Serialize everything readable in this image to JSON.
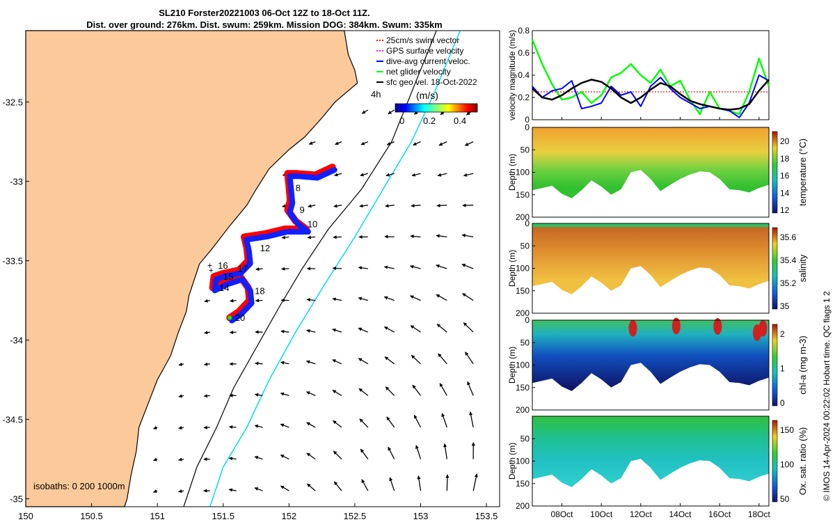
{
  "title": {
    "line1": "SL210 Forster20221003 06-Oct 12Z to 18-Oct 11Z.",
    "line2": "Dist. over ground: 276km. Dist. swum: 259km. Mission DOG: 384km. Swum: 335km"
  },
  "map": {
    "xticks": [
      "150",
      "150.5",
      "151",
      "151.5",
      "152",
      "152.5",
      "153",
      "153.5"
    ],
    "xtick_values": [
      150,
      150.5,
      151,
      151.5,
      152,
      152.5,
      153,
      153.5
    ],
    "yticks": [
      "-32.5",
      "-33",
      "-33.5",
      "-34",
      "-34.5",
      "-35"
    ],
    "ytick_values": [
      -32.5,
      -33,
      -33.5,
      -34,
      -34.5,
      -35
    ],
    "xlim": [
      150,
      153.6
    ],
    "ylim": [
      -35.05,
      -32.05
    ],
    "time_label": "4h",
    "isobaths_label": "isobaths: 0   200  1000m",
    "colorbar_title": "(m/s)",
    "colorbar_ticks": [
      "0",
      "0.2",
      "0.4"
    ],
    "legend": [
      {
        "label": "25cm/s swim vector",
        "color": "#ff0000",
        "style": "dotted"
      },
      {
        "label": "GPS surface velocity",
        "color": "#ff00ff",
        "style": "dotted"
      },
      {
        "label": "dive-avg current veloc.",
        "color": "#0000ff",
        "style": "solid"
      },
      {
        "label": "net glider velocity",
        "color": "#00ff00",
        "style": "solid"
      },
      {
        "label": "sfc geo vel. 18-Oct-2022",
        "color": "#000000",
        "style": "solid"
      }
    ],
    "track_day_labels": [
      {
        "day": "8",
        "lon": 152.05,
        "lat": -33.06
      },
      {
        "day": "9",
        "lon": 152.08,
        "lat": -33.2
      },
      {
        "day": "10",
        "lon": 152.14,
        "lat": -33.29
      },
      {
        "day": "12",
        "lon": 151.78,
        "lat": -33.44
      },
      {
        "day": "16",
        "lon": 151.46,
        "lat": -33.55
      },
      {
        "day": "17",
        "lon": 151.61,
        "lat": -33.57
      },
      {
        "day": "15",
        "lon": 151.5,
        "lat": -33.62
      },
      {
        "day": "14",
        "lon": 151.47,
        "lat": -33.69
      },
      {
        "day": "18",
        "lon": 151.74,
        "lat": -33.71
      },
      {
        "day": "20",
        "lon": 151.59,
        "lat": -33.88
      }
    ],
    "track": [
      [
        152.33,
        -32.91
      ],
      [
        152.2,
        -32.96
      ],
      [
        152.05,
        -32.95
      ],
      [
        151.99,
        -32.95
      ],
      [
        152.0,
        -33.03
      ],
      [
        152.01,
        -33.12
      ],
      [
        151.99,
        -33.18
      ],
      [
        152.05,
        -33.25
      ],
      [
        152.13,
        -33.3
      ],
      [
        151.97,
        -33.3
      ],
      [
        151.82,
        -33.33
      ],
      [
        151.66,
        -33.35
      ],
      [
        151.68,
        -33.42
      ],
      [
        151.69,
        -33.5
      ],
      [
        151.62,
        -33.56
      ],
      [
        151.5,
        -33.58
      ],
      [
        151.43,
        -33.6
      ],
      [
        151.42,
        -33.67
      ],
      [
        151.52,
        -33.63
      ],
      [
        151.63,
        -33.6
      ],
      [
        151.69,
        -33.67
      ],
      [
        151.7,
        -33.75
      ],
      [
        151.62,
        -33.82
      ],
      [
        151.55,
        -33.86
      ]
    ]
  },
  "right_panels": {
    "velocity": {
      "ylabel": "velocity magnitude (m/s)",
      "yticks": [
        "0",
        "0.2",
        "0.4",
        "0.6",
        "0.8"
      ],
      "ylim": [
        0,
        0.8
      ],
      "xlim_days": [
        6.5,
        18.5
      ],
      "swim_speed": 0.25,
      "series_days": [
        6.5,
        7,
        7.5,
        8,
        8.5,
        9,
        9.5,
        10,
        10.5,
        11,
        11.5,
        12,
        12.5,
        13,
        13.5,
        14,
        14.5,
        15,
        15.5,
        16,
        16.5,
        17,
        17.5,
        18,
        18.5
      ],
      "net_glider": [
        0.72,
        0.5,
        0.32,
        0.18,
        0.2,
        0.25,
        0.15,
        0.22,
        0.38,
        0.42,
        0.5,
        0.4,
        0.33,
        0.45,
        0.3,
        0.35,
        0.18,
        0.05,
        0.25,
        0.1,
        0.08,
        0.05,
        0.25,
        0.55,
        0.3
      ],
      "dive_avg": [
        0.3,
        0.2,
        0.26,
        0.28,
        0.35,
        0.1,
        0.12,
        0.15,
        0.3,
        0.22,
        0.25,
        0.12,
        0.3,
        0.38,
        0.28,
        0.2,
        0.15,
        0.1,
        0.12,
        0.1,
        0.08,
        0.02,
        0.15,
        0.4,
        0.35
      ],
      "geo_vel": [
        0.28,
        0.2,
        0.18,
        0.22,
        0.28,
        0.33,
        0.36,
        0.34,
        0.28,
        0.2,
        0.15,
        0.2,
        0.27,
        0.33,
        0.3,
        0.23,
        0.17,
        0.14,
        0.12,
        0.1,
        0.09,
        0.1,
        0.14,
        0.26,
        0.36
      ]
    },
    "temperature": {
      "ylabel": "Depth (m)",
      "cblabel": "temperature (°C)",
      "yticks": [
        "0",
        "50",
        "100",
        "150",
        "200"
      ],
      "cbticks": [
        "12",
        "14",
        "16",
        "18",
        "20"
      ],
      "bottom_depth": [
        140,
        135,
        130,
        148,
        158,
        140,
        118,
        132,
        150,
        138,
        100,
        95,
        115,
        142,
        128,
        115,
        105,
        98,
        100,
        115,
        138,
        140,
        145,
        135,
        128
      ]
    },
    "salinity": {
      "ylabel": "Depth (m)",
      "cblabel": "salinity",
      "yticks": [
        "0",
        "50",
        "100",
        "150",
        "200"
      ],
      "cbticks": [
        "35",
        "35.2",
        "35.4",
        "35.6"
      ]
    },
    "chla": {
      "ylabel": "Depth (m)",
      "cblabel": "chl-a (mg m-3)",
      "yticks": [
        "0",
        "50",
        "100",
        "150",
        "200"
      ],
      "cbticks": [
        "0",
        "1",
        "2"
      ]
    },
    "oxygen": {
      "ylabel": "Depth (m)",
      "cblabel": "Ox. sat. ratio (%)",
      "yticks": [
        "50",
        "100",
        "150",
        "200"
      ],
      "cbticks": [
        "50",
        "100",
        "150"
      ]
    },
    "xticks": [
      "08Oct",
      "10Oct",
      "12Oct",
      "14Oct",
      "16Oct",
      "18Oct"
    ],
    "xtick_days": [
      8,
      10,
      12,
      14,
      16,
      18
    ]
  },
  "stamp": "© IMOS 14-Apr-2024 00:22:02 Hobart time. QC flags 1  2",
  "colors": {
    "land": "#fbc99a",
    "isobath_200": "#000000",
    "isobath_1000": "#00e0e0"
  }
}
